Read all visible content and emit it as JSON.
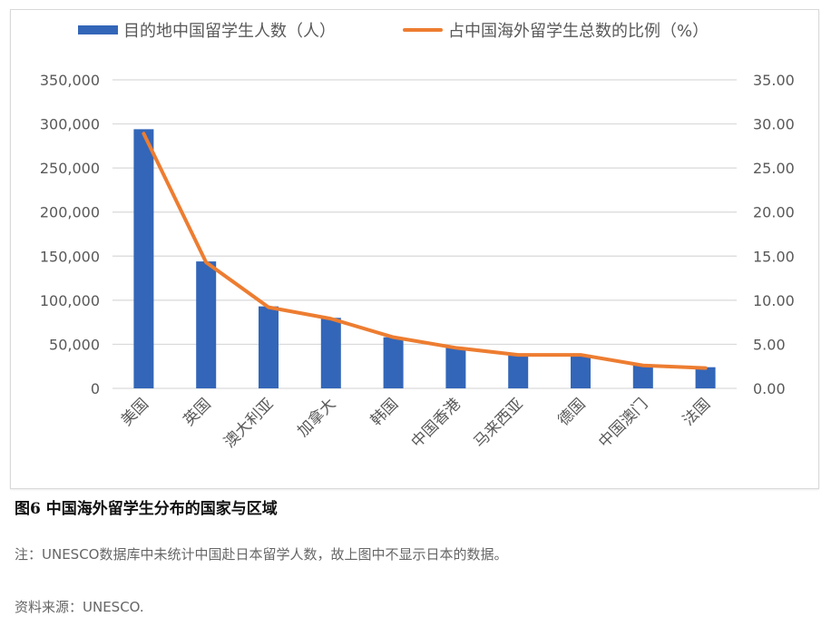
{
  "legend": {
    "bar_label": "目的地中国留学生人数（人）",
    "line_label": "占中国海外留学生总数的比例（%）"
  },
  "colors": {
    "bar": "#3366b8",
    "line": "#ed7d31",
    "grid": "#d9d9d9",
    "axis_text": "#595959"
  },
  "caption": "图6 中国海外留学生分布的国家与区域",
  "note": "注：UNESCO数据库中未统计中国赴日本留学人数，故上图中不显示日本的数据。",
  "source": "资料来源：UNESCO.",
  "chart_data": {
    "type": "bar",
    "title": "图6 中国海外留学生分布的国家与区域",
    "categories": [
      "美国",
      "英国",
      "澳大利亚",
      "加拿大",
      "韩国",
      "中国香港",
      "马来西亚",
      "德国",
      "中国澳门",
      "法国"
    ],
    "series": [
      {
        "name": "目的地中国留学生人数（人）",
        "type": "bar",
        "axis": "left",
        "values": [
          294000,
          144000,
          93000,
          80000,
          58000,
          46000,
          38000,
          38000,
          26000,
          24000
        ]
      },
      {
        "name": "占中国海外留学生总数的比例（%）",
        "type": "line",
        "axis": "right",
        "values": [
          28.9,
          14.3,
          9.2,
          7.9,
          5.8,
          4.6,
          3.8,
          3.8,
          2.6,
          2.3
        ]
      }
    ],
    "xlabel": "",
    "ylabel": "",
    "ylim": [
      0,
      350000
    ],
    "y_ticks": [
      "0",
      "50,000",
      "100,000",
      "150,000",
      "200,000",
      "250,000",
      "300,000",
      "350,000"
    ],
    "y2lim": [
      0,
      35
    ],
    "y2_ticks": [
      "0.00",
      "5.00",
      "10.00",
      "15.00",
      "20.00",
      "25.00",
      "30.00",
      "35.00"
    ],
    "grid": true,
    "legend_position": "top"
  }
}
